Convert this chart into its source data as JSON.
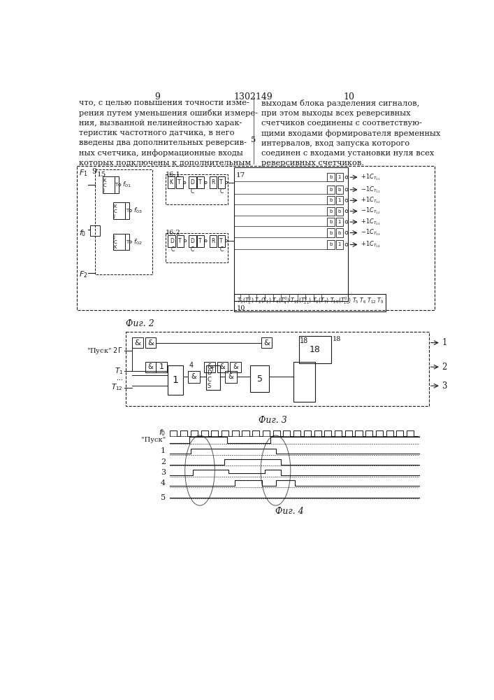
{
  "page_num_left": "9",
  "page_num_center": "1302149",
  "page_num_right": "10",
  "text_left": "что, с целью повышения точности изме-\nрения путем уменьшения ошибки измере-\nния, вызванной нелинейностью харак-\nтеристик частотного датчика, в него\nвведены два дополнительных реверсив-\nных счетчика, информационные входы\nкоторых подключены к дополнительным",
  "text_right": "выходам блока разделения сигналов,\nпри этом выходы всех реверсивных\nсчетчиков соединены с соответствую-\nщими входами формирователя временных\nинтервалов, вход запуска которого\nсоединен с входами установки нуля всех\nреверсивных счетчиков.",
  "line_num_5": "5",
  "fig2_label": "Фиг. 2",
  "fig3_label": "Фиг. 3",
  "fig4_label": "Фиг. 4",
  "bg_color": "#ffffff",
  "text_color": "#1a1a1a",
  "line_color": "#1a1a1a",
  "font_size_text": 8.2,
  "font_size_page": 9.0
}
